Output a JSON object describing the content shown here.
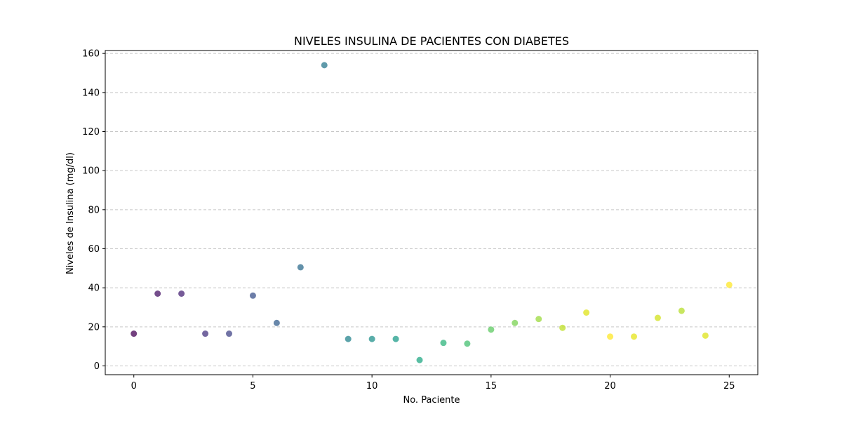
{
  "chart_data": {
    "type": "scatter",
    "title": "NIVELES INSULINA DE PACIENTES CON DIABETES",
    "xlabel": "No. Paciente",
    "ylabel": "Niveles de Insulina (mg/dl)",
    "xlim": [
      -1.2,
      26.2
    ],
    "ylim": [
      -4.5,
      161.5
    ],
    "xticks": [
      0,
      5,
      10,
      15,
      20,
      25
    ],
    "yticks": [
      0,
      20,
      40,
      60,
      80,
      100,
      120,
      140,
      160
    ],
    "grid": {
      "axis": "y",
      "style": "dashed"
    },
    "colormap": "viridis",
    "x": [
      0,
      1,
      2,
      3,
      4,
      5,
      6,
      7,
      8,
      9,
      10,
      11,
      12,
      13,
      14,
      15,
      16,
      17,
      18,
      19,
      20,
      21,
      22,
      23,
      24,
      25
    ],
    "y": [
      16.5,
      37,
      37,
      16.5,
      16.5,
      36,
      22,
      50.5,
      154,
      13.8,
      13.8,
      13.8,
      3,
      11.8,
      11.4,
      18.6,
      22,
      24,
      19.5,
      27.3,
      15,
      15,
      24.6,
      28.2,
      15.5,
      41.5
    ],
    "colors": [
      "#440154",
      "#471365",
      "#482475",
      "#463480",
      "#414487",
      "#3b528b",
      "#355f8d",
      "#2f6c8e",
      "#2a788e",
      "#25848e",
      "#21918c",
      "#1e9c89",
      "#22a884",
      "#2fb47c",
      "#44bf70",
      "#5ec962",
      "#7ad151",
      "#9bd93c",
      "#bddf26",
      "#dfe318",
      "#fde725",
      "#e5e419",
      "#d2e21b",
      "#b5de2b",
      "#dde318",
      "#fde725"
    ]
  }
}
